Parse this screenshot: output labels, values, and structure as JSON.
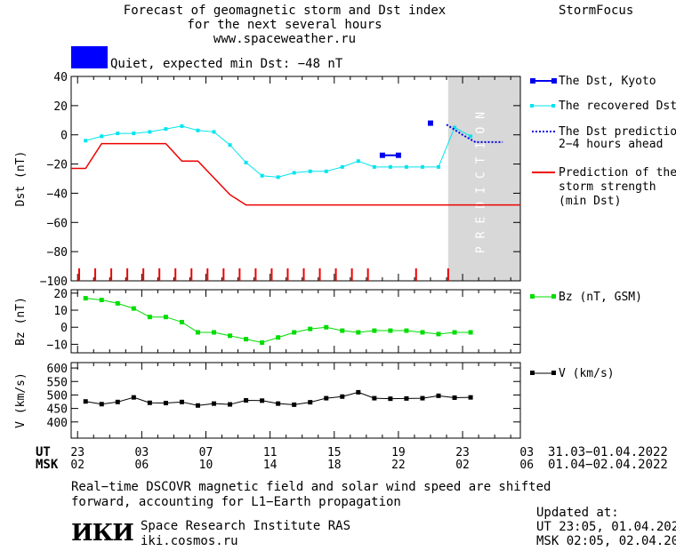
{
  "header": {
    "title_line1": "Forecast of geomagnetic storm and Dst index",
    "title_line2": "for the next several hours",
    "url": "www.spaceweather.ru",
    "brand": "StormFocus",
    "status_text": "Quiet, expected min Dst: −48 nT",
    "status_color": "#0000ff"
  },
  "prediction_label": "PREDICTION",
  "axes": {
    "ut_label": "UT",
    "msk_label": "MSK",
    "ut_ticks": [
      "23",
      "03",
      "07",
      "11",
      "15",
      "19",
      "23",
      "03"
    ],
    "msk_ticks": [
      "02",
      "06",
      "10",
      "14",
      "18",
      "22",
      "02",
      "06"
    ],
    "ut_range": "31.03−01.04.2022",
    "msk_range": "01.04−02.04.2022"
  },
  "legend": {
    "kyoto": "The Dst, Kyoto",
    "recovered": "The recovered Dst",
    "prediction_1": "The Dst prediction",
    "prediction_2": "2−4 hours ahead",
    "strength_1": "Prediction of the",
    "strength_2": "storm strength",
    "strength_3": "(min Dst)",
    "bz": "Bz (nT, GSM)",
    "v": "V (km/s)"
  },
  "footer": {
    "note_line1": "Real−time DSCOVR magnetic field and solar wind speed are shifted",
    "note_line2": "forward, accounting for L1−Earth propagation",
    "org_logo": "ИКИ",
    "org_name": "Space Research Institute RAS",
    "org_url": "iki.cosmos.ru",
    "updated_label": "Updated at:",
    "updated_ut": "UT   23:05, 01.04.2022",
    "updated_msk": "MSK 02:05, 02.04.2022"
  },
  "chart_data": [
    {
      "type": "line",
      "ylabel": "Dst (nT)",
      "xrange": [
        -0.4,
        27.6
      ],
      "ylim": [
        -100,
        40
      ],
      "yticks": [
        40,
        20,
        0,
        -20,
        -40,
        -60,
        -80,
        -100
      ],
      "prediction_region": [
        23.1,
        27.6
      ],
      "storm_ticks": [
        0.1,
        1.1,
        2.1,
        3.1,
        4.1,
        5.1,
        6.1,
        7.1,
        8.1,
        9.1,
        10.1,
        11.1,
        12.1,
        13.1,
        14.1,
        15.1,
        16.1,
        17.1,
        18.1,
        21.1,
        23.1
      ],
      "series": [
        {
          "name": "The Dst, Kyoto",
          "color": "#0000ee",
          "segments": [
            [
              [
                19.0,
                -14
              ],
              [
                20.0,
                -14
              ]
            ],
            [
              [
                22.0,
                8
              ]
            ]
          ]
        },
        {
          "name": "The recovered Dst",
          "color": "#00e5ee",
          "x": [
            0.5,
            1.5,
            2.5,
            3.5,
            4.5,
            5.5,
            6.5,
            7.5,
            8.5,
            9.5,
            10.5,
            11.5,
            12.5,
            13.5,
            14.5,
            15.5,
            16.5,
            17.5,
            18.5,
            19.5,
            20.5,
            21.5,
            22.5,
            23.5,
            24.5
          ],
          "y": [
            -4,
            -1,
            1,
            1,
            2,
            4,
            6,
            3,
            2,
            -7,
            -19,
            -28,
            -29,
            -26,
            -25,
            -25,
            -22,
            -18,
            -22,
            -22,
            -22,
            -22,
            -22,
            5,
            -1
          ]
        },
        {
          "name": "The Dst prediction 2-4 hours ahead",
          "color": "#0000ee",
          "dashed": true,
          "x": [
            23.0,
            24.0,
            24.8,
            26.5
          ],
          "y": [
            7,
            0,
            -5,
            -5
          ]
        },
        {
          "name": "Prediction of the storm strength (min Dst)",
          "color": "#ee0000",
          "x": [
            -0.4,
            0.5,
            1.5,
            5.5,
            6.5,
            7.5,
            9.5,
            10.5,
            27.6
          ],
          "y": [
            -23,
            -23,
            -6,
            -6,
            -18,
            -18,
            -41,
            -48,
            -48
          ]
        }
      ]
    },
    {
      "type": "line",
      "ylabel": "Bz (nT)",
      "xrange": [
        -0.4,
        27.6
      ],
      "ylim": [
        -15,
        22
      ],
      "yticks": [
        20,
        10,
        0,
        -10
      ],
      "series": [
        {
          "name": "Bz (nT, GSM)",
          "color": "#00dd00",
          "x": [
            0.5,
            1.5,
            2.5,
            3.5,
            4.5,
            5.5,
            6.5,
            7.5,
            8.5,
            9.5,
            10.5,
            11.5,
            12.5,
            13.5,
            14.5,
            15.5,
            16.5,
            17.5,
            18.5,
            19.5,
            20.5,
            21.5,
            22.5,
            23.5,
            24.5
          ],
          "y": [
            17,
            16,
            14,
            11,
            6,
            6,
            3,
            -3,
            -3,
            -5,
            -7,
            -9,
            -6,
            -3,
            -1,
            0,
            -2,
            -3,
            -2,
            -2,
            -2,
            -3,
            -4,
            -3,
            -3
          ]
        }
      ]
    },
    {
      "type": "line",
      "ylabel": "V (km/s)",
      "xrange": [
        -0.4,
        27.6
      ],
      "ylim": [
        340,
        620
      ],
      "yticks": [
        600,
        550,
        500,
        450,
        400
      ],
      "series": [
        {
          "name": "V (km/s)",
          "color": "#000000",
          "x": [
            0.5,
            1.5,
            2.5,
            3.5,
            4.5,
            5.5,
            6.5,
            7.5,
            8.5,
            9.5,
            10.5,
            11.5,
            12.5,
            13.5,
            14.5,
            15.5,
            16.5,
            17.5,
            18.5,
            19.5,
            20.5,
            21.5,
            22.5,
            23.5,
            24.5
          ],
          "y": [
            476,
            466,
            474,
            491,
            471,
            470,
            474,
            461,
            468,
            465,
            480,
            479,
            468,
            464,
            473,
            488,
            494,
            510,
            488,
            486,
            487,
            488,
            497,
            490,
            491
          ]
        }
      ]
    }
  ]
}
